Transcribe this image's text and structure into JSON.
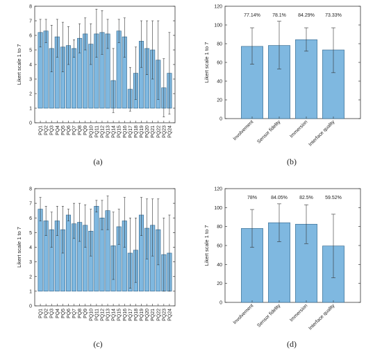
{
  "chart_data": [
    {
      "type": "bar",
      "panel_label": "(a)",
      "ylabel": "Likert scale 1 to 7",
      "ylim": [
        0,
        8
      ],
      "yticks": [
        0,
        1,
        2,
        3,
        4,
        5,
        6,
        7,
        8
      ],
      "baseline": 1,
      "error_bars": true,
      "bar_color": "#7fb8e0",
      "categories": [
        "PQ1",
        "PQ2",
        "PQ3",
        "PQ4",
        "PQ5",
        "PQ6",
        "PQ7",
        "PQ8",
        "PQ9",
        "PQ10",
        "PQ11",
        "PQ12",
        "PQ13",
        "PQ14",
        "PQ15",
        "PQ16",
        "PQ17",
        "PQ18",
        "PQ19",
        "PQ20",
        "PQ21",
        "PQ22",
        "PQ23",
        "PQ24"
      ],
      "values": [
        6.2,
        6.3,
        5.1,
        5.9,
        5.2,
        5.3,
        5.1,
        5.8,
        6.1,
        5.4,
        6.1,
        6.2,
        6.1,
        2.9,
        6.3,
        5.9,
        2.3,
        3.4,
        5.6,
        5.1,
        5.0,
        4.3,
        2.4,
        3.4
      ],
      "err_low": [
        5.2,
        5.5,
        3.5,
        4.5,
        3.5,
        4.0,
        4.5,
        4.8,
        5.0,
        4.0,
        4.5,
        4.7,
        5.1,
        0.7,
        5.5,
        4.5,
        0.8,
        1.6,
        3.8,
        3.3,
        3.0,
        1.6,
        0.4,
        0.6
      ],
      "err_high": [
        7.1,
        7.1,
        6.7,
        7.1,
        6.9,
        6.6,
        5.7,
        6.8,
        7.2,
        6.8,
        7.8,
        7.7,
        7.1,
        5.1,
        7.1,
        7.2,
        3.8,
        5.2,
        7.0,
        7.0,
        7.0,
        7.0,
        4.4,
        6.2
      ]
    },
    {
      "type": "bar",
      "panel_label": "(b)",
      "ylabel": "Likert scale 1 to 7",
      "ylim": [
        0,
        120
      ],
      "yticks": [
        0,
        20,
        40,
        60,
        80,
        100,
        120
      ],
      "baseline": 0,
      "error_bars": true,
      "bar_color": "#7fb8e0",
      "categories": [
        "Involvement",
        "Sensor fidelity",
        "Immersion",
        "Interface quality"
      ],
      "values": [
        77.14,
        78.1,
        84.29,
        73.33
      ],
      "value_labels": [
        "77.14%",
        "78.1%",
        "84.29%",
        "73.33%"
      ],
      "err_low": [
        58,
        53,
        72,
        49
      ],
      "err_high": [
        97,
        104,
        97,
        97
      ]
    },
    {
      "type": "bar",
      "panel_label": "(c)",
      "ylabel": "Likert scale 1 to 7",
      "ylim": [
        0,
        8
      ],
      "yticks": [
        0,
        1,
        2,
        3,
        4,
        5,
        6,
        7,
        8
      ],
      "baseline": 1,
      "error_bars": true,
      "bar_color": "#7fb8e0",
      "categories": [
        "PQ1",
        "PQ2",
        "PQ3",
        "PQ4",
        "PQ5",
        "PQ6",
        "PQ7",
        "PQ8",
        "PQ9",
        "PQ10",
        "PQ11",
        "PQ12",
        "PQ13",
        "PQ14",
        "PQ15",
        "PQ16",
        "PQ17",
        "PQ18",
        "PQ19",
        "PQ20",
        "PQ21",
        "PQ22",
        "PQ23",
        "PQ24"
      ],
      "values": [
        6.6,
        5.8,
        5.2,
        5.8,
        5.2,
        6.2,
        5.6,
        5.7,
        5.5,
        5.1,
        6.8,
        6.0,
        6.5,
        4.1,
        5.4,
        5.8,
        3.6,
        3.8,
        6.2,
        5.3,
        5.5,
        5.2,
        3.5,
        3.6
      ],
      "err_low": [
        5.8,
        4.8,
        4.0,
        4.8,
        3.6,
        5.8,
        4.6,
        4.4,
        4.0,
        3.4,
        6.4,
        5.2,
        5.2,
        1.8,
        4.2,
        4.0,
        1.2,
        1.6,
        4.8,
        3.2,
        3.4,
        2.8,
        1.0,
        1.0
      ],
      "err_high": [
        7.4,
        6.8,
        6.4,
        6.8,
        6.8,
        6.6,
        7.0,
        7.0,
        6.9,
        6.6,
        7.2,
        7.2,
        7.5,
        6.4,
        6.6,
        7.4,
        6.0,
        6.0,
        7.4,
        7.3,
        7.3,
        7.3,
        6.0,
        6.2
      ]
    },
    {
      "type": "bar",
      "panel_label": "(d)",
      "ylabel": "Likert scale 1 to 7",
      "ylim": [
        0,
        120
      ],
      "yticks": [
        0,
        20,
        40,
        60,
        80,
        100,
        120
      ],
      "baseline": 0,
      "error_bars": true,
      "bar_color": "#7fb8e0",
      "categories": [
        "Involvement",
        "Sensor fidelity",
        "Immersion",
        "Interface quality"
      ],
      "values": [
        78,
        84.05,
        82.5,
        59.52
      ],
      "value_labels": [
        "78%",
        "84.05%",
        "82.5%",
        "59.52%"
      ],
      "err_low": [
        58,
        64,
        62,
        26
      ],
      "err_high": [
        98,
        104,
        103,
        93
      ]
    }
  ]
}
